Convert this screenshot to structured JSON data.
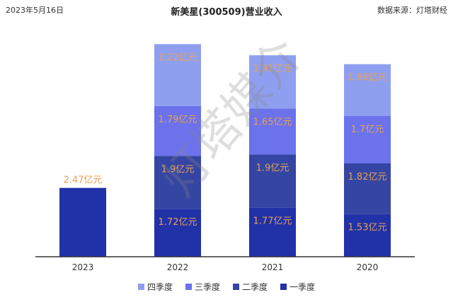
{
  "header": {
    "date": "2023年5月16日",
    "title": "新美星(300509)营业收入",
    "source": "数据来源：灯塔财经"
  },
  "watermark": "灯塔媒介",
  "colors": {
    "q1": "#2131a8",
    "q2": "#3545a3",
    "q3": "#6b72eb",
    "q4": "#8f9ff0",
    "label": "#e6a157",
    "axis": "#333333"
  },
  "chart_data": {
    "type": "bar",
    "stacked": true,
    "categories": [
      "2023",
      "2022",
      "2021",
      "2020"
    ],
    "series": [
      {
        "name": "一季度",
        "values": [
          2.47,
          1.72,
          1.77,
          1.53
        ],
        "labels": [
          "2.47亿元",
          "1.72亿元",
          "1.77亿元",
          "1.53亿元"
        ]
      },
      {
        "name": "二季度",
        "values": [
          null,
          1.9,
          1.9,
          1.82
        ],
        "labels": [
          "",
          "1.9亿元",
          "1.9亿元",
          "1.82亿元"
        ]
      },
      {
        "name": "三季度",
        "values": [
          null,
          1.79,
          1.65,
          1.7
        ],
        "labels": [
          "",
          "1.79亿元",
          "1.65亿元",
          "1.7亿元"
        ]
      },
      {
        "name": "四季度",
        "values": [
          null,
          2.22,
          1.91,
          1.86
        ],
        "labels": [
          "",
          "2.22亿元",
          "1.91亿元",
          "1.86亿元"
        ]
      }
    ],
    "unit": "亿元",
    "ylim": [
      0,
      8
    ],
    "grid": false,
    "legend_position": "bottom"
  }
}
